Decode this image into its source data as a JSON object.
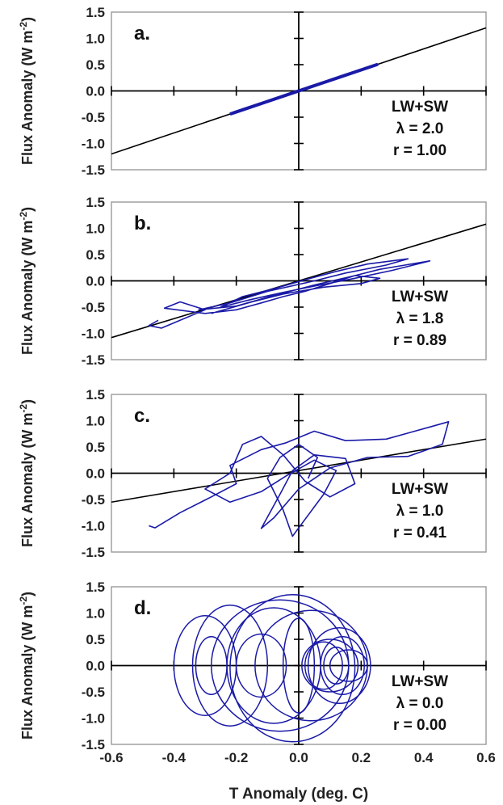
{
  "chart_data": {
    "type": "scatter",
    "shared_xlabel": "T Anomaly (deg. C)",
    "xlim": [
      -0.6,
      0.6
    ],
    "x_ticks": [
      "-0.6",
      "-0.4",
      "-0.2",
      "0.0",
      "0.2",
      "0.4",
      "0.6"
    ],
    "ylim": [
      -1.5,
      1.5
    ],
    "y_ticks": [
      "1.5",
      "1.0",
      "0.5",
      "0.0",
      "-0.5",
      "-1.0",
      "-1.5"
    ],
    "panels": [
      {
        "label": "a.",
        "ylabel": "Flux Anomaly (W m-2)",
        "annotation": [
          "LW+SW",
          "λ = 2.0",
          "r = 1.00"
        ],
        "regression": {
          "slope": 2.0,
          "intercept": 0.0
        },
        "trajectory": [
          [
            -0.22,
            -0.44
          ],
          [
            -0.17,
            -0.34
          ],
          [
            -0.12,
            -0.24
          ],
          [
            -0.07,
            -0.14
          ],
          [
            -0.02,
            -0.04
          ],
          [
            0.03,
            0.06
          ],
          [
            0.08,
            0.16
          ],
          [
            0.13,
            0.26
          ],
          [
            0.18,
            0.36
          ],
          [
            0.22,
            0.44
          ],
          [
            0.25,
            0.5
          ],
          [
            0.2,
            0.4
          ],
          [
            0.14,
            0.28
          ],
          [
            0.08,
            0.16
          ],
          [
            0.02,
            0.04
          ],
          [
            -0.04,
            -0.08
          ],
          [
            -0.1,
            -0.2
          ],
          [
            -0.16,
            -0.32
          ],
          [
            -0.21,
            -0.42
          ]
        ]
      },
      {
        "label": "b.",
        "ylabel": "Flux Anomaly (W m-2)",
        "annotation": [
          "LW+SW",
          "λ = 1.8",
          "r = 0.89"
        ],
        "regression": {
          "slope": 1.8,
          "intercept": 0.0
        },
        "trajectory": [
          [
            -0.45,
            -0.75
          ],
          [
            -0.48,
            -0.85
          ],
          [
            -0.44,
            -0.9
          ],
          [
            -0.38,
            -0.75
          ],
          [
            -0.3,
            -0.55
          ],
          [
            -0.38,
            -0.4
          ],
          [
            -0.43,
            -0.52
          ],
          [
            -0.3,
            -0.62
          ],
          [
            -0.2,
            -0.55
          ],
          [
            -0.12,
            -0.42
          ],
          [
            -0.05,
            -0.3
          ],
          [
            0.02,
            -0.2
          ],
          [
            0.1,
            -0.05
          ],
          [
            0.18,
            0.1
          ],
          [
            0.26,
            0.22
          ],
          [
            0.34,
            0.3
          ],
          [
            0.42,
            0.38
          ],
          [
            0.3,
            0.2
          ],
          [
            0.18,
            0.05
          ],
          [
            0.05,
            -0.1
          ],
          [
            -0.05,
            -0.22
          ],
          [
            -0.15,
            -0.35
          ],
          [
            -0.25,
            -0.5
          ],
          [
            -0.18,
            -0.3
          ],
          [
            -0.08,
            -0.15
          ],
          [
            0.02,
            0.02
          ],
          [
            0.12,
            0.18
          ],
          [
            0.22,
            0.32
          ],
          [
            0.35,
            0.42
          ],
          [
            0.28,
            0.3
          ],
          [
            0.15,
            0.15
          ],
          [
            0.05,
            0.0
          ],
          [
            -0.1,
            -0.2
          ],
          [
            -0.22,
            -0.42
          ],
          [
            -0.32,
            -0.55
          ],
          [
            -0.2,
            -0.48
          ],
          [
            -0.08,
            -0.28
          ],
          [
            0.05,
            -0.08
          ],
          [
            0.18,
            0.1
          ],
          [
            0.26,
            0.05
          ],
          [
            0.2,
            -0.05
          ],
          [
            0.08,
            -0.12
          ],
          [
            -0.05,
            -0.25
          ],
          [
            -0.15,
            -0.4
          ],
          [
            -0.28,
            -0.62
          ]
        ]
      },
      {
        "label": "c.",
        "ylabel": "Flux Anomaly (W m-2)",
        "annotation": [
          "LW+SW",
          "λ = 1.0",
          "r = 0.41"
        ],
        "regression": {
          "slope": 1.0,
          "intercept": 0.05
        },
        "trajectory": [
          [
            -0.48,
            -1.0
          ],
          [
            -0.46,
            -1.04
          ],
          [
            -0.38,
            -0.75
          ],
          [
            -0.28,
            -0.45
          ],
          [
            -0.2,
            -0.2
          ],
          [
            -0.22,
            0.15
          ],
          [
            -0.12,
            0.45
          ],
          [
            -0.04,
            0.58
          ],
          [
            0.05,
            0.8
          ],
          [
            0.15,
            0.62
          ],
          [
            0.28,
            0.65
          ],
          [
            0.42,
            0.88
          ],
          [
            0.48,
            0.98
          ],
          [
            0.46,
            0.55
          ],
          [
            0.35,
            0.32
          ],
          [
            0.22,
            0.3
          ],
          [
            0.1,
            0.1
          ],
          [
            0.0,
            -0.3
          ],
          [
            -0.08,
            -0.85
          ],
          [
            -0.12,
            -1.05
          ],
          [
            -0.06,
            -0.4
          ],
          [
            -0.02,
            0.05
          ],
          [
            0.05,
            0.35
          ],
          [
            0.15,
            0.28
          ],
          [
            0.18,
            -0.2
          ],
          [
            0.1,
            -0.45
          ],
          [
            0.02,
            -0.15
          ],
          [
            -0.05,
            0.35
          ],
          [
            -0.12,
            0.7
          ],
          [
            -0.18,
            0.55
          ],
          [
            -0.22,
            0.0
          ],
          [
            -0.3,
            -0.3
          ],
          [
            -0.22,
            -0.55
          ],
          [
            -0.12,
            -0.35
          ],
          [
            -0.04,
            -0.05
          ],
          [
            0.05,
            0.25
          ],
          [
            0.12,
            0.05
          ],
          [
            0.08,
            -0.4
          ],
          [
            -0.02,
            -1.2
          ],
          [
            -0.05,
            -0.7
          ],
          [
            -0.1,
            -0.1
          ],
          [
            -0.06,
            0.3
          ],
          [
            0.0,
            0.55
          ],
          [
            0.06,
            0.3
          ],
          [
            0.03,
            -0.1
          ]
        ]
      },
      {
        "label": "d.",
        "ylabel": "Flux Anomaly (W m-2)",
        "annotation": [
          "LW+SW",
          "λ = 0.0",
          "r = 0.00"
        ],
        "regression": null,
        "ellipses": [
          [
            -0.28,
            0.0,
            0.05,
            0.55
          ],
          [
            -0.3,
            0.0,
            0.1,
            0.95
          ],
          [
            -0.22,
            0.0,
            0.12,
            1.15
          ],
          [
            -0.12,
            0.0,
            0.08,
            0.6
          ],
          [
            -0.08,
            0.0,
            0.15,
            1.1
          ],
          [
            -0.06,
            0.0,
            0.22,
            1.25
          ],
          [
            0.0,
            0.0,
            0.05,
            0.9
          ],
          [
            0.04,
            0.0,
            0.18,
            1.05
          ],
          [
            0.08,
            0.0,
            0.06,
            0.45
          ],
          [
            0.1,
            0.0,
            0.09,
            0.5
          ],
          [
            0.12,
            0.0,
            0.04,
            0.35
          ],
          [
            0.14,
            0.0,
            0.07,
            0.55
          ],
          [
            0.16,
            0.0,
            0.06,
            0.3
          ],
          [
            0.13,
            0.0,
            0.1,
            0.72
          ],
          [
            -0.02,
            -0.05,
            0.2,
            1.4
          ]
        ]
      }
    ]
  }
}
